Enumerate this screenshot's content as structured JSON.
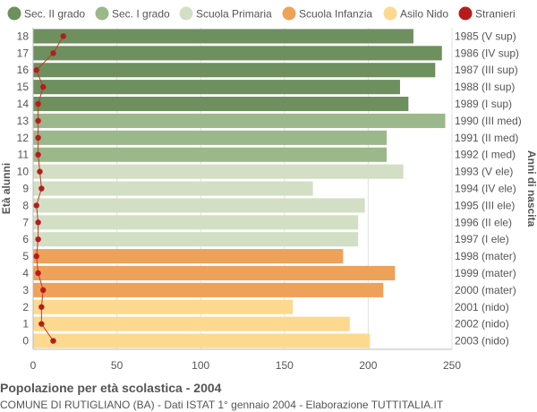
{
  "chart_data": {
    "type": "bar",
    "orientation": "horizontal",
    "title": "Popolazione per età scolastica - 2004",
    "subtitle": "COMUNE DI RUTIGLIANO (BA) - Dati ISTAT 1° gennaio 2004 - Elaborazione TUTTITALIA.IT",
    "ylabel_left": "Età alunni",
    "ylabel_right": "Anni di nascita",
    "xlim": [
      0,
      250
    ],
    "xticks": [
      "0",
      "50",
      "100",
      "150",
      "200",
      "250"
    ],
    "grid": true,
    "legend_position": "top",
    "legend": [
      {
        "name": "Sec. II grado",
        "color": "#6e8f5e"
      },
      {
        "name": "Sec. I grado",
        "color": "#9ab88a"
      },
      {
        "name": "Scuola Primaria",
        "color": "#d3dfc4"
      },
      {
        "name": "Scuola Infanzia",
        "color": "#eea158"
      },
      {
        "name": "Asilo Nido",
        "color": "#fcd98e"
      },
      {
        "name": "Stranieri",
        "color": "#b71c1c"
      }
    ],
    "bars": [
      {
        "age": "18",
        "year": "1985 (V sup)",
        "value": 227,
        "group": 0,
        "stranieri": 18
      },
      {
        "age": "17",
        "year": "1986 (IV sup)",
        "value": 244,
        "group": 0,
        "stranieri": 12
      },
      {
        "age": "16",
        "year": "1987 (III sup)",
        "value": 240,
        "group": 0,
        "stranieri": 2
      },
      {
        "age": "15",
        "year": "1988 (II sup)",
        "value": 219,
        "group": 0,
        "stranieri": 6
      },
      {
        "age": "14",
        "year": "1989 (I sup)",
        "value": 224,
        "group": 0,
        "stranieri": 3
      },
      {
        "age": "13",
        "year": "1990 (III med)",
        "value": 246,
        "group": 1,
        "stranieri": 3
      },
      {
        "age": "12",
        "year": "1991 (II med)",
        "value": 211,
        "group": 1,
        "stranieri": 3
      },
      {
        "age": "11",
        "year": "1992 (I med)",
        "value": 211,
        "group": 1,
        "stranieri": 3
      },
      {
        "age": "10",
        "year": "1993 (V ele)",
        "value": 221,
        "group": 2,
        "stranieri": 4
      },
      {
        "age": "9",
        "year": "1994 (IV ele)",
        "value": 167,
        "group": 2,
        "stranieri": 5
      },
      {
        "age": "8",
        "year": "1995 (III ele)",
        "value": 198,
        "group": 2,
        "stranieri": 2
      },
      {
        "age": "7",
        "year": "1996 (II ele)",
        "value": 194,
        "group": 2,
        "stranieri": 3
      },
      {
        "age": "6",
        "year": "1997 (I ele)",
        "value": 194,
        "group": 2,
        "stranieri": 3
      },
      {
        "age": "5",
        "year": "1998 (mater)",
        "value": 185,
        "group": 3,
        "stranieri": 2
      },
      {
        "age": "4",
        "year": "1999 (mater)",
        "value": 216,
        "group": 3,
        "stranieri": 3
      },
      {
        "age": "3",
        "year": "2000 (mater)",
        "value": 209,
        "group": 3,
        "stranieri": 6
      },
      {
        "age": "2",
        "year": "2001 (nido)",
        "value": 155,
        "group": 4,
        "stranieri": 5
      },
      {
        "age": "1",
        "year": "2002 (nido)",
        "value": 189,
        "group": 4,
        "stranieri": 5
      },
      {
        "age": "0",
        "year": "2003 (nido)",
        "value": 201,
        "group": 4,
        "stranieri": 12
      }
    ]
  }
}
